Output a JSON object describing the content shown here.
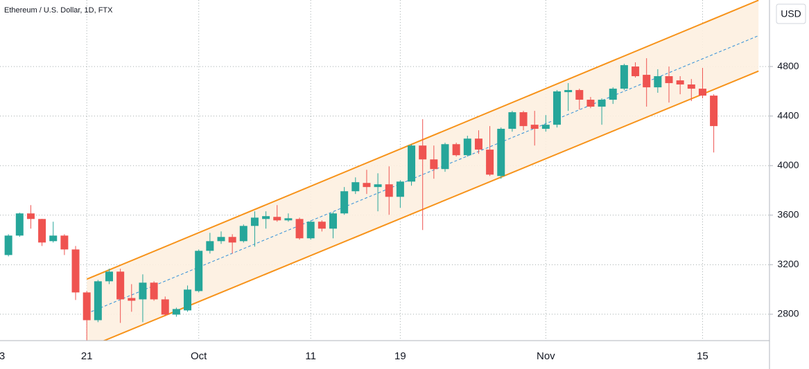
{
  "chart_data": {
    "type": "candlestick",
    "title": "Ethereum / U.S. Dollar, 1D, FTX",
    "y_label": "USD",
    "categories": [
      "3",
      null,
      null,
      null,
      null,
      null,
      null,
      null,
      "21",
      null,
      null,
      null,
      null,
      null,
      null,
      null,
      null,
      null,
      "Oct",
      null,
      null,
      null,
      null,
      null,
      null,
      null,
      null,
      null,
      "11",
      null,
      null,
      null,
      null,
      null,
      null,
      null,
      "19",
      null,
      null,
      null,
      null,
      null,
      null,
      null,
      null,
      null,
      null,
      null,
      null,
      "Nov",
      null,
      null,
      null,
      null,
      null,
      null,
      null,
      null,
      null,
      null,
      null,
      null,
      null,
      "15",
      null,
      null,
      null,
      null,
      null
    ],
    "open": [
      null,
      3278,
      3435,
      3614,
      3569,
      3390,
      3435,
      3323,
      2976,
      2752,
      3066,
      3144,
      2931,
      2920,
      3055,
      2920,
      2797,
      2831,
      2987,
      3312,
      3390,
      3424,
      3390,
      3513,
      3569,
      3586,
      3558,
      3569,
      3413,
      3547,
      3491,
      3614,
      3793,
      3860,
      3827,
      3849,
      3748,
      3871,
      4162,
      4050,
      3972,
      4173,
      4084,
      4218,
      4129,
      3916,
      4297,
      4431,
      4330,
      4297,
      4330,
      4593,
      4610,
      4532,
      4476,
      4532,
      4621,
      4800,
      4733,
      4632,
      4722,
      4688,
      4655,
      4621,
      4565,
      null,
      null,
      null,
      null
    ],
    "high": [
      null,
      3446,
      3620,
      3681,
      3570,
      3547,
      3446,
      3351,
      2987,
      3077,
      3167,
      3167,
      3043,
      3122,
      3066,
      2943,
      2853,
      3032,
      3323,
      3457,
      3469,
      3446,
      3525,
      3631,
      3631,
      3681,
      3614,
      3580,
      3558,
      3558,
      3625,
      3827,
      3905,
      3966,
      3938,
      3994,
      3882,
      4173,
      4375,
      4162,
      4185,
      4185,
      4241,
      4285,
      4319,
      4308,
      4442,
      4442,
      4442,
      4408,
      4610,
      4666,
      4621,
      4554,
      4543,
      4632,
      4822,
      4834,
      4867,
      4778,
      4800,
      4722,
      4699,
      4789,
      4576,
      null,
      null,
      null,
      null
    ],
    "low": [
      null,
      3267,
      3425,
      3491,
      3351,
      3379,
      3278,
      2915,
      2590,
      2736,
      3043,
      2730,
      2820,
      2736,
      2909,
      2786,
      2780,
      2820,
      2976,
      3290,
      3368,
      3290,
      3379,
      3346,
      3491,
      3547,
      3547,
      3402,
      3402,
      3468,
      3413,
      3603,
      3771,
      3771,
      3631,
      3603,
      3659,
      3838,
      3480,
      3894,
      3950,
      4073,
      4073,
      4095,
      3916,
      3894,
      4274,
      4285,
      4162,
      4274,
      4308,
      4442,
      4453,
      4464,
      4330,
      4498,
      4610,
      4711,
      4476,
      4588,
      4509,
      4576,
      4521,
      4543,
      4106,
      null,
      null,
      null,
      null
    ],
    "close": [
      null,
      3435,
      3614,
      3569,
      3379,
      3435,
      3323,
      2976,
      2752,
      3066,
      3144,
      2920,
      2909,
      3055,
      2920,
      2797,
      2842,
      2999,
      3312,
      3390,
      3424,
      3379,
      3513,
      3580,
      3592,
      3558,
      3575,
      3413,
      3547,
      3491,
      3614,
      3793,
      3866,
      3827,
      3849,
      3748,
      3871,
      4162,
      4050,
      3972,
      4173,
      4084,
      4218,
      4129,
      3927,
      4297,
      4431,
      4319,
      4297,
      4330,
      4599,
      4610,
      4532,
      4476,
      4532,
      4621,
      4811,
      4722,
      4632,
      4722,
      4666,
      4655,
      4621,
      4565,
      4319,
      null,
      null,
      null,
      null
    ],
    "ylim": [
      2587,
      5337
    ],
    "yticks": [
      2800,
      3200,
      3600,
      4000,
      4400,
      4800
    ],
    "grid": true,
    "up_color": "#26a69a",
    "down_color": "#ef5350",
    "channel": {
      "x": [
        8,
        68
      ],
      "upper": [
        3083,
        5335
      ],
      "middle": [
        2806,
        5049
      ],
      "lower": [
        2529,
        4763
      ],
      "color": "#f7931a",
      "fill": "#fdf0e0"
    }
  }
}
